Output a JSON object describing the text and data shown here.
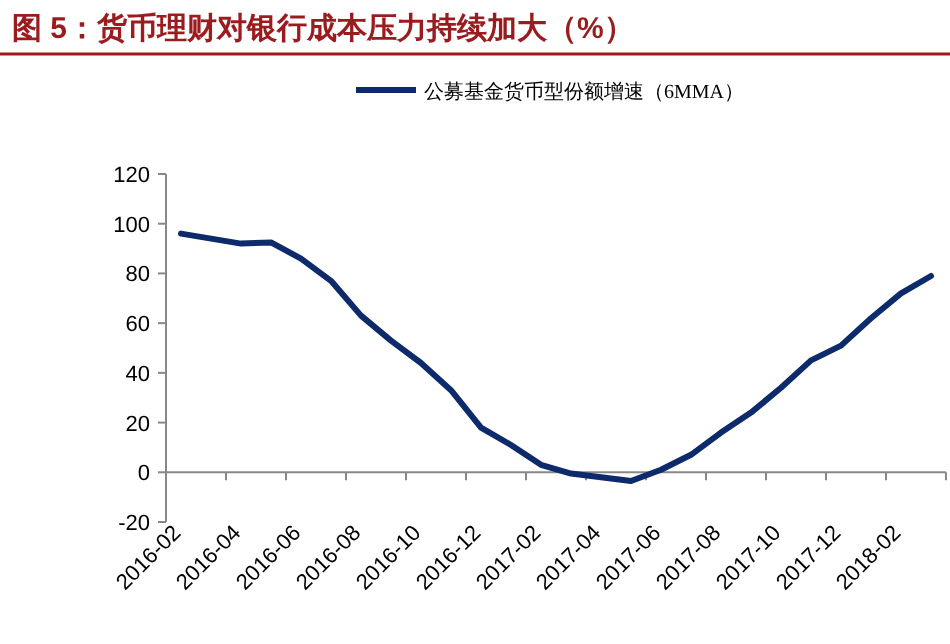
{
  "chart_data": {
    "type": "line",
    "title": "图 5：货币理财对银行成本压力持续加大（%）",
    "categories": [
      "2016-02",
      null,
      "2016-04",
      null,
      "2016-06",
      null,
      "2016-08",
      null,
      "2016-10",
      null,
      "2016-12",
      null,
      "2017-02",
      null,
      "2017-04",
      null,
      "2017-06",
      null,
      "2017-08",
      null,
      "2017-10",
      null,
      "2017-12",
      null,
      "2018-02",
      null
    ],
    "series": [
      {
        "name": "公募基金货币型份额增速（6MMA）",
        "color": "#0d2a6b",
        "values": [
          96,
          94,
          92,
          92.5,
          86,
          77,
          63,
          53,
          44,
          33,
          18,
          11,
          3,
          -0.5,
          -2,
          -3.5,
          1,
          7,
          16,
          24,
          34,
          45,
          51,
          62,
          72,
          79
        ]
      }
    ],
    "ylim": [
      -20,
      120
    ],
    "yticks": [
      -20,
      0,
      20,
      40,
      60,
      80,
      100,
      120
    ],
    "grid": false,
    "legend": "top",
    "marker": "none",
    "line_style": "solid"
  }
}
